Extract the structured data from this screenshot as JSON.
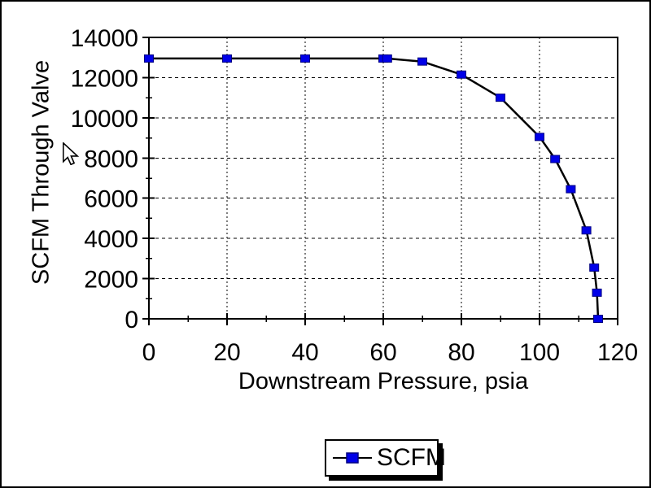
{
  "chart_data": {
    "type": "line",
    "title": "",
    "xlabel": "Downstream Pressure, psia",
    "ylabel": "SCFM Through Valve",
    "x_axis": {
      "min": 0,
      "max": 120,
      "major_step": 20,
      "minor_step": 10,
      "tick_labels": [
        "0",
        "20",
        "40",
        "60",
        "80",
        "100",
        "120"
      ]
    },
    "y_axis": {
      "min": 0,
      "max": 14000,
      "major_step": 2000,
      "minor_step": 1000,
      "tick_labels": [
        "0",
        "2000",
        "4000",
        "6000",
        "8000",
        "10000",
        "12000",
        "14000"
      ]
    },
    "grid": "dashed-major-gridlines",
    "legend_position": "bottom-center",
    "series": [
      {
        "name": "SCFM",
        "marker": "square",
        "marker_color": "#0000E8",
        "marker_edge_color": "#000080",
        "line_color": "#000000",
        "points": [
          [
            0,
            12950
          ],
          [
            20,
            12950
          ],
          [
            40,
            12950
          ],
          [
            60,
            12950
          ],
          [
            61,
            12950
          ],
          [
            70,
            12800
          ],
          [
            80,
            12150
          ],
          [
            90,
            11000
          ],
          [
            100,
            9050
          ],
          [
            104,
            7950
          ],
          [
            108,
            6450
          ],
          [
            112,
            4400
          ],
          [
            114,
            2550
          ],
          [
            114.7,
            1300
          ],
          [
            115,
            0
          ]
        ]
      }
    ]
  },
  "colors": {
    "background": "#FFFFFF",
    "frame_border": "#000000",
    "axis": "#000000",
    "gridline": "#000000",
    "text": "#000000",
    "marker_fill": "#0000E8",
    "marker_stroke": "#000080",
    "series_line": "#000000"
  }
}
